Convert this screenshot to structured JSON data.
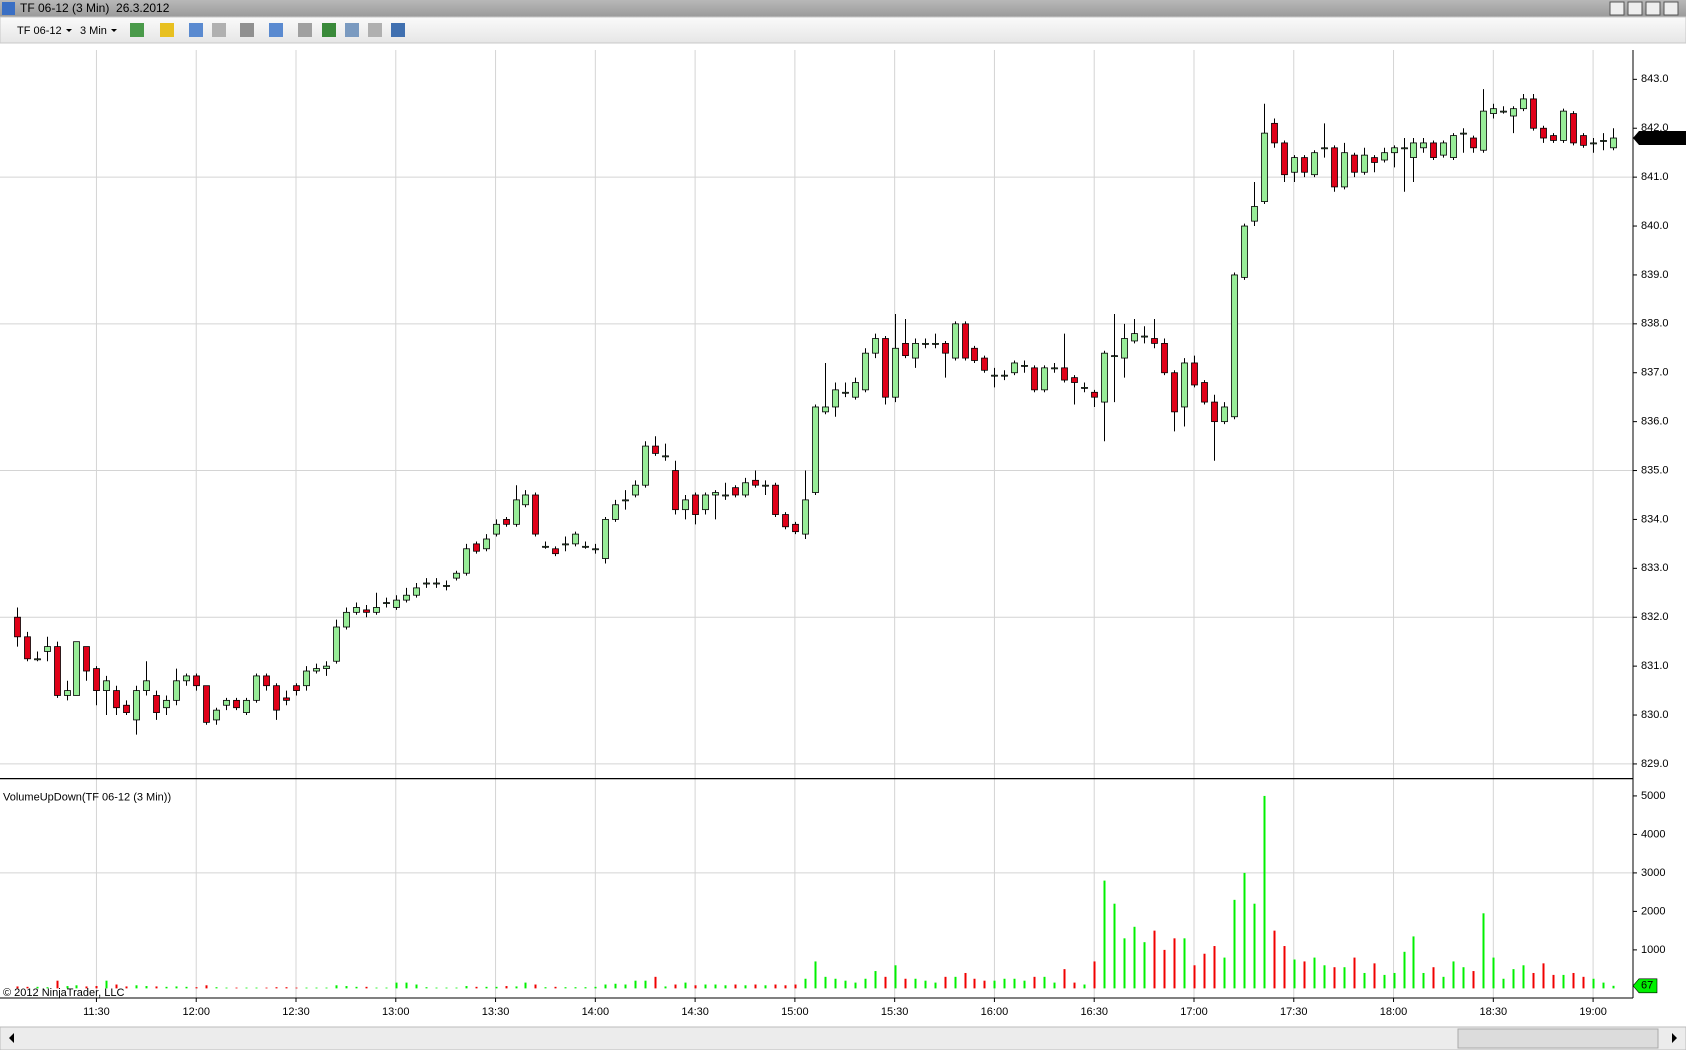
{
  "window": {
    "title": "TF 06-12 (3 Min)  26.3.2012",
    "instrument": "TF 06-12",
    "interval": "3 Min"
  },
  "chart_data": {
    "type": "candlestick",
    "x": [
      666,
      669,
      672,
      675,
      678,
      681,
      684,
      687,
      690,
      693,
      696,
      699,
      702,
      705,
      708,
      711,
      714,
      717,
      720,
      723,
      726,
      729,
      732,
      735,
      738,
      741,
      744,
      747,
      750,
      753,
      756,
      759,
      762,
      765,
      768,
      771,
      774,
      777,
      780,
      783,
      786,
      789,
      792,
      795,
      798,
      801,
      804,
      807,
      810,
      813,
      816,
      819,
      822,
      825,
      828,
      831,
      834,
      837,
      840,
      843,
      846,
      849,
      852,
      855,
      858,
      861,
      864,
      867,
      870,
      873,
      876,
      879,
      882,
      885,
      888,
      891,
      894,
      897,
      900,
      903,
      906,
      909,
      912,
      915,
      918,
      921,
      924,
      927,
      930,
      933,
      936,
      939,
      942,
      945,
      948,
      951,
      954,
      957,
      960,
      963,
      966,
      969,
      972,
      975,
      978,
      981,
      984,
      987,
      990,
      993,
      996,
      999,
      1002,
      1005,
      1008,
      1011,
      1014,
      1017,
      1020,
      1023,
      1026,
      1029,
      1032,
      1035,
      1038,
      1041,
      1044,
      1047,
      1050,
      1053,
      1056,
      1059,
      1062,
      1065,
      1068,
      1071,
      1074,
      1077,
      1080,
      1083,
      1086,
      1089,
      1092,
      1095,
      1098,
      1101,
      1104,
      1107,
      1110,
      1113,
      1116,
      1119,
      1122,
      1125,
      1128,
      1131,
      1134,
      1137,
      1140,
      1143,
      1146
    ],
    "xlim": [
      661,
      1152
    ],
    "xticks": [
      {
        "value": 690,
        "label": "11:30"
      },
      {
        "value": 720,
        "label": "12:00"
      },
      {
        "value": 750,
        "label": "12:30"
      },
      {
        "value": 780,
        "label": "13:00"
      },
      {
        "value": 810,
        "label": "13:30"
      },
      {
        "value": 840,
        "label": "14:00"
      },
      {
        "value": 870,
        "label": "14:30"
      },
      {
        "value": 900,
        "label": "15:00"
      },
      {
        "value": 930,
        "label": "15:30"
      },
      {
        "value": 960,
        "label": "16:00"
      },
      {
        "value": 990,
        "label": "16:30"
      },
      {
        "value": 1020,
        "label": "17:00"
      },
      {
        "value": 1050,
        "label": "17:30"
      },
      {
        "value": 1080,
        "label": "18:00"
      },
      {
        "value": 1110,
        "label": "18:30"
      },
      {
        "value": 1140,
        "label": "19:00"
      }
    ],
    "open": [
      832.0,
      831.6,
      831.15,
      831.3,
      831.4,
      830.4,
      830.4,
      831.4,
      830.95,
      830.5,
      830.5,
      830.2,
      829.9,
      830.5,
      830.4,
      830.15,
      830.3,
      830.7,
      830.8,
      830.6,
      829.9,
      830.2,
      830.3,
      830.05,
      830.3,
      830.8,
      830.6,
      830.35,
      830.6,
      830.6,
      830.9,
      830.95,
      831.1,
      831.8,
      832.1,
      832.15,
      832.1,
      832.3,
      832.2,
      832.35,
      832.45,
      832.7,
      832.7,
      832.65,
      832.8,
      832.9,
      833.5,
      833.4,
      833.7,
      834.0,
      833.9,
      834.3,
      834.5,
      833.45,
      833.4,
      833.5,
      833.5,
      833.45,
      833.4,
      833.2,
      834.0,
      834.4,
      834.5,
      834.7,
      835.5,
      835.3,
      835.0,
      834.2,
      834.5,
      834.2,
      834.5,
      834.5,
      834.65,
      834.5,
      834.8,
      834.7,
      834.7,
      834.1,
      833.9,
      833.7,
      834.55,
      836.2,
      836.3,
      836.6,
      836.5,
      836.65,
      837.4,
      837.7,
      836.5,
      837.6,
      837.3,
      837.6,
      837.6,
      837.6,
      837.3,
      838.0,
      837.5,
      837.3,
      836.95,
      836.95,
      837.0,
      837.15,
      837.1,
      836.65,
      837.1,
      837.1,
      836.9,
      836.7,
      836.6,
      836.4,
      837.35,
      837.3,
      837.65,
      837.75,
      837.7,
      837.6,
      837.0,
      836.3,
      837.2,
      836.8,
      836.4,
      836.0,
      836.1,
      838.95,
      840.1,
      840.5,
      842.1,
      841.7,
      841.1,
      841.4,
      841.05,
      841.6,
      841.6,
      840.8,
      841.45,
      841.1,
      841.4,
      841.35,
      841.5,
      841.6,
      841.4,
      841.6,
      841.7,
      841.45,
      841.4,
      841.9,
      841.8,
      841.55,
      842.3,
      842.35,
      842.25,
      842.4,
      842.6,
      842.0,
      841.85,
      841.75,
      842.3,
      841.85,
      841.7,
      841.75,
      841.6
    ],
    "high": [
      832.2,
      831.7,
      831.3,
      831.6,
      831.5,
      830.7,
      831.5,
      831.4,
      831.0,
      830.8,
      830.6,
      830.3,
      830.6,
      831.1,
      830.5,
      830.4,
      830.95,
      830.85,
      830.85,
      830.6,
      830.15,
      830.35,
      830.35,
      830.35,
      830.85,
      830.85,
      830.65,
      830.5,
      830.65,
      831.0,
      831.05,
      831.1,
      831.95,
      832.2,
      832.3,
      832.25,
      832.5,
      832.4,
      832.45,
      832.6,
      832.7,
      832.8,
      832.8,
      832.75,
      832.95,
      833.5,
      833.55,
      833.7,
      834.0,
      834.05,
      834.7,
      834.6,
      834.55,
      833.55,
      833.45,
      833.65,
      833.75,
      833.55,
      833.5,
      834.05,
      834.4,
      834.6,
      834.8,
      835.6,
      835.7,
      835.55,
      835.2,
      834.5,
      834.55,
      834.55,
      834.6,
      834.75,
      834.7,
      834.85,
      835.0,
      834.8,
      834.75,
      834.15,
      833.95,
      835.0,
      836.35,
      837.2,
      836.8,
      836.8,
      836.9,
      837.5,
      837.8,
      837.75,
      838.2,
      838.1,
      837.7,
      837.7,
      837.8,
      837.65,
      838.05,
      838.05,
      837.55,
      837.35,
      837.1,
      837.05,
      837.25,
      837.25,
      837.15,
      837.15,
      837.2,
      837.8,
      836.95,
      836.8,
      836.65,
      837.45,
      838.2,
      838.0,
      838.1,
      837.95,
      838.1,
      837.7,
      837.05,
      837.3,
      837.35,
      836.85,
      836.55,
      836.4,
      839.05,
      840.05,
      840.9,
      842.5,
      842.2,
      841.75,
      841.45,
      841.45,
      841.55,
      842.1,
      841.65,
      841.7,
      841.5,
      841.6,
      841.45,
      841.6,
      841.65,
      841.8,
      841.8,
      841.8,
      841.75,
      841.75,
      841.9,
      842.0,
      841.85,
      842.8,
      842.5,
      842.45,
      842.45,
      842.7,
      842.7,
      842.05,
      841.9,
      842.4,
      842.35,
      841.9,
      841.8,
      841.9,
      842.0
    ],
    "low": [
      831.4,
      831.1,
      831.1,
      831.1,
      830.35,
      830.3,
      830.4,
      830.7,
      830.2,
      830.0,
      830.0,
      830.0,
      829.6,
      830.4,
      829.9,
      830.0,
      830.2,
      830.6,
      830.5,
      829.8,
      829.8,
      830.1,
      830.1,
      830.0,
      830.25,
      830.5,
      829.9,
      830.2,
      830.4,
      830.5,
      830.85,
      830.8,
      831.05,
      831.75,
      832.05,
      832.0,
      832.05,
      832.2,
      832.15,
      832.3,
      832.4,
      832.6,
      832.6,
      832.55,
      832.75,
      832.85,
      833.3,
      833.35,
      833.65,
      833.85,
      833.85,
      834.25,
      833.65,
      833.4,
      833.25,
      833.35,
      833.45,
      833.4,
      833.3,
      833.1,
      833.95,
      834.2,
      834.45,
      834.65,
      835.3,
      835.2,
      834.1,
      834.0,
      833.9,
      834.1,
      834.0,
      834.4,
      834.45,
      834.45,
      834.65,
      834.5,
      834.05,
      833.8,
      833.7,
      833.6,
      834.5,
      836.15,
      836.1,
      836.5,
      836.45,
      836.6,
      837.3,
      836.35,
      836.4,
      837.3,
      837.1,
      837.5,
      837.5,
      836.9,
      837.25,
      837.25,
      837.2,
      837.0,
      836.7,
      836.85,
      836.95,
      837.0,
      836.6,
      836.6,
      837.0,
      836.8,
      836.35,
      836.6,
      836.3,
      835.6,
      836.4,
      836.9,
      837.6,
      837.6,
      837.5,
      836.95,
      835.8,
      835.9,
      836.7,
      836.35,
      835.2,
      835.95,
      836.05,
      838.9,
      840.0,
      840.45,
      841.6,
      840.9,
      840.9,
      841.0,
      841.0,
      841.4,
      840.7,
      840.75,
      841.0,
      841.05,
      841.1,
      841.3,
      841.2,
      840.7,
      840.9,
      841.5,
      841.35,
      841.4,
      841.35,
      841.5,
      841.5,
      841.5,
      842.2,
      842.3,
      841.9,
      842.35,
      841.95,
      841.7,
      841.7,
      841.7,
      841.65,
      841.6,
      841.5,
      841.55,
      841.55
    ],
    "close": [
      831.6,
      831.15,
      831.15,
      831.4,
      830.4,
      830.5,
      831.5,
      830.9,
      830.5,
      830.7,
      830.15,
      830.05,
      830.5,
      830.7,
      830.05,
      830.3,
      830.7,
      830.8,
      830.6,
      829.85,
      830.1,
      830.3,
      830.15,
      830.3,
      830.8,
      830.6,
      830.1,
      830.3,
      830.5,
      830.9,
      830.95,
      831.0,
      831.8,
      832.1,
      832.2,
      832.1,
      832.2,
      832.3,
      832.35,
      832.45,
      832.6,
      832.7,
      832.7,
      832.65,
      832.9,
      833.4,
      833.35,
      833.6,
      833.9,
      833.9,
      834.4,
      834.5,
      833.7,
      833.45,
      833.3,
      833.5,
      833.7,
      833.45,
      833.4,
      834.0,
      834.3,
      834.4,
      834.7,
      835.5,
      835.35,
      835.3,
      834.2,
      834.4,
      834.1,
      834.5,
      834.55,
      834.5,
      834.5,
      834.75,
      834.7,
      834.7,
      834.1,
      833.85,
      833.75,
      834.4,
      836.3,
      836.3,
      836.65,
      836.6,
      836.8,
      837.4,
      837.7,
      836.5,
      837.5,
      837.35,
      837.6,
      837.6,
      837.6,
      837.4,
      838.0,
      837.3,
      837.25,
      837.05,
      836.95,
      836.95,
      837.2,
      837.15,
      836.65,
      837.1,
      837.1,
      836.85,
      836.8,
      836.7,
      836.5,
      837.4,
      837.35,
      837.7,
      837.8,
      837.75,
      837.6,
      837.0,
      836.2,
      837.2,
      836.75,
      836.4,
      836.0,
      836.3,
      839.0,
      840.0,
      840.4,
      841.9,
      841.7,
      841.05,
      841.4,
      841.1,
      841.5,
      841.6,
      840.8,
      841.5,
      841.1,
      841.45,
      841.3,
      841.5,
      841.6,
      841.6,
      841.7,
      841.7,
      841.4,
      841.7,
      841.85,
      841.9,
      841.6,
      842.35,
      842.4,
      842.35,
      842.4,
      842.6,
      842.0,
      841.8,
      841.75,
      842.35,
      841.7,
      841.65,
      841.7,
      841.75,
      841.8
    ],
    "up_color": "#98ec98",
    "down_color": "#e00018",
    "ylim": [
      828.7,
      843.6
    ],
    "yticks": [
      {
        "value": 829,
        "label": "829.0"
      },
      {
        "value": 830,
        "label": "830.0"
      },
      {
        "value": 831,
        "label": "831.0"
      },
      {
        "value": 832,
        "label": "832.0"
      },
      {
        "value": 833,
        "label": "833.0"
      },
      {
        "value": 834,
        "label": "834.0"
      },
      {
        "value": 835,
        "label": "835.0"
      },
      {
        "value": 836,
        "label": "836.0"
      },
      {
        "value": 837,
        "label": "837.0"
      },
      {
        "value": 838,
        "label": "838.0"
      },
      {
        "value": 839,
        "label": "839.0"
      },
      {
        "value": 840,
        "label": "840.0"
      },
      {
        "value": 841,
        "label": "841.0"
      },
      {
        "value": 842,
        "label": "842.0"
      },
      {
        "value": 843,
        "label": "843.0"
      }
    ],
    "ygrid": [
      829,
      832,
      835,
      838,
      841
    ],
    "indicator": {
      "title": "VolumeUpDown(TF 06-12 (3 Min))",
      "values": [
        50,
        40,
        40,
        30,
        200,
        60,
        80,
        50,
        60,
        200,
        100,
        50,
        80,
        60,
        50,
        40,
        50,
        40,
        30,
        80,
        30,
        20,
        20,
        20,
        20,
        20,
        30,
        30,
        20,
        20,
        20,
        20,
        80,
        60,
        40,
        40,
        20,
        20,
        150,
        150,
        100,
        30,
        20,
        20,
        20,
        60,
        40,
        40,
        40,
        60,
        50,
        150,
        100,
        30,
        40,
        30,
        30,
        30,
        40,
        100,
        120,
        100,
        200,
        200,
        300,
        50,
        100,
        150,
        80,
        100,
        100,
        80,
        100,
        80,
        100,
        80,
        100,
        80,
        100,
        250,
        700,
        300,
        250,
        200,
        150,
        250,
        450,
        300,
        600,
        250,
        250,
        200,
        150,
        300,
        300,
        400,
        250,
        200,
        200,
        250,
        250,
        200,
        300,
        300,
        150,
        500,
        150,
        100,
        700,
        2800,
        2200,
        1300,
        1600,
        1200,
        1500,
        1000,
        1300,
        1300,
        600,
        900,
        1100,
        800,
        2300,
        3000,
        2200,
        5000,
        1500,
        1100,
        750,
        700,
        800,
        600,
        550,
        550,
        800,
        400,
        650,
        350,
        400,
        950,
        1350,
        400,
        550,
        300,
        700,
        550,
        450,
        1950,
        800,
        250,
        500,
        600,
        400,
        650,
        350,
        350,
        400,
        300,
        250,
        150,
        67
      ],
      "up_color": "#00f000",
      "down_color": "#f00000",
      "ylim": [
        -250,
        5450
      ],
      "yticks": [
        1000,
        2000,
        3000,
        4000,
        5000
      ],
      "ygrid": [
        3000
      ]
    },
    "copyright": "© 2012 NinjaTrader, LLC"
  }
}
